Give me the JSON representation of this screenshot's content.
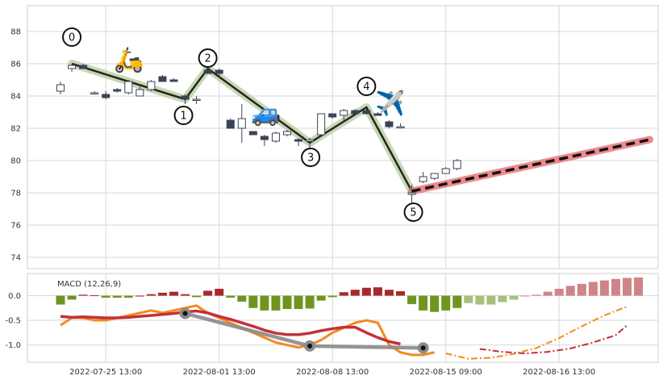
{
  "chart_data": [
    {
      "type": "candlestick",
      "ylim": [
        73.3,
        89.6
      ],
      "yticks": [
        74,
        76,
        78,
        80,
        82,
        84,
        86,
        88
      ],
      "grid": true,
      "candles": [
        {
          "x": 0,
          "o": 84.3,
          "h": 84.9,
          "l": 84.1,
          "c": 84.7
        },
        {
          "x": 1,
          "o": 85.7,
          "h": 86.0,
          "l": 85.5,
          "c": 85.9
        },
        {
          "x": 2,
          "o": 85.9,
          "h": 86.0,
          "l": 85.7,
          "c": 85.7
        },
        {
          "x": 3,
          "o": 84.2,
          "h": 84.3,
          "l": 84.1,
          "c": 84.2
        },
        {
          "x": 4,
          "o": 84.1,
          "h": 84.3,
          "l": 83.8,
          "c": 83.9
        },
        {
          "x": 5,
          "o": 84.4,
          "h": 84.5,
          "l": 84.2,
          "c": 84.3
        },
        {
          "x": 6,
          "o": 84.2,
          "h": 85.0,
          "l": 84.1,
          "c": 84.9
        },
        {
          "x": 7,
          "o": 84.0,
          "h": 84.6,
          "l": 84.0,
          "c": 84.4
        },
        {
          "x": 8,
          "o": 84.4,
          "h": 85.0,
          "l": 84.3,
          "c": 84.9
        },
        {
          "x": 9,
          "o": 85.2,
          "h": 85.3,
          "l": 84.9,
          "c": 84.9
        },
        {
          "x": 10,
          "o": 85.0,
          "h": 85.1,
          "l": 84.9,
          "c": 84.9
        },
        {
          "x": 11,
          "o": 84.0,
          "h": 84.1,
          "l": 83.5,
          "c": 83.8
        },
        {
          "x": 12,
          "o": 83.8,
          "h": 84.0,
          "l": 83.5,
          "c": 83.8
        },
        {
          "x": 13,
          "o": 85.6,
          "h": 85.8,
          "l": 85.4,
          "c": 85.4
        },
        {
          "x": 14,
          "o": 85.6,
          "h": 85.7,
          "l": 85.2,
          "c": 85.4
        },
        {
          "x": 15,
          "o": 82.5,
          "h": 82.6,
          "l": 82.0,
          "c": 82.0
        },
        {
          "x": 16,
          "o": 82.0,
          "h": 83.5,
          "l": 81.1,
          "c": 82.6
        },
        {
          "x": 17,
          "o": 81.8,
          "h": 81.8,
          "l": 81.6,
          "c": 81.6
        },
        {
          "x": 18,
          "o": 81.5,
          "h": 81.6,
          "l": 80.9,
          "c": 81.3
        },
        {
          "x": 19,
          "o": 81.2,
          "h": 81.8,
          "l": 81.1,
          "c": 81.7
        },
        {
          "x": 20,
          "o": 81.6,
          "h": 81.9,
          "l": 81.5,
          "c": 81.8
        },
        {
          "x": 21,
          "o": 81.3,
          "h": 81.4,
          "l": 80.9,
          "c": 81.2
        },
        {
          "x": 22,
          "o": 81.2,
          "h": 81.4,
          "l": 80.8,
          "c": 81.3
        },
        {
          "x": 23,
          "o": 81.6,
          "h": 82.9,
          "l": 81.5,
          "c": 82.9
        },
        {
          "x": 24,
          "o": 82.9,
          "h": 82.9,
          "l": 82.6,
          "c": 82.7
        },
        {
          "x": 25,
          "o": 82.8,
          "h": 83.2,
          "l": 82.4,
          "c": 83.1
        },
        {
          "x": 26,
          "o": 83.1,
          "h": 83.2,
          "l": 82.9,
          "c": 82.9
        },
        {
          "x": 27,
          "o": 83.1,
          "h": 83.2,
          "l": 83.0,
          "c": 82.9
        },
        {
          "x": 28,
          "o": 82.9,
          "h": 83.0,
          "l": 82.8,
          "c": 82.8
        },
        {
          "x": 29,
          "o": 82.4,
          "h": 82.5,
          "l": 82.0,
          "c": 82.1
        },
        {
          "x": 30,
          "o": 82.1,
          "h": 82.3,
          "l": 82.0,
          "c": 82.1
        },
        {
          "x": 31,
          "o": 77.9,
          "h": 78.5,
          "l": 77.3,
          "c": 78.0
        },
        {
          "x": 32,
          "o": 78.7,
          "h": 79.3,
          "l": 78.6,
          "c": 79.0
        },
        {
          "x": 33,
          "o": 78.9,
          "h": 79.2,
          "l": 78.8,
          "c": 79.2
        },
        {
          "x": 34,
          "o": 79.2,
          "h": 79.6,
          "l": 79.2,
          "c": 79.5
        },
        {
          "x": 35,
          "o": 79.5,
          "h": 80.1,
          "l": 79.4,
          "c": 80.0
        }
      ],
      "waves": [
        {
          "label": "0",
          "x": 1,
          "y": 86.0
        },
        {
          "label": "1",
          "x": 11,
          "y": 83.8
        },
        {
          "label": "2",
          "x": 13,
          "y": 85.7
        },
        {
          "label": "3",
          "x": 22,
          "y": 81.1
        },
        {
          "label": "4",
          "x": 27,
          "y": 83.3
        },
        {
          "label": "5",
          "x": 31,
          "y": 78.1
        }
      ],
      "projection": [
        {
          "x": 31,
          "y": 78.1
        },
        {
          "x": 52,
          "y": 81.3
        }
      ],
      "emojis": [
        "🛵",
        "🚙",
        "✈️"
      ]
    },
    {
      "type": "macd",
      "title": "MACD (12,26,9)",
      "ylim": [
        -1.35,
        0.45
      ],
      "yticks": [
        0.0,
        -0.5,
        -1.0
      ],
      "xticks": [
        {
          "x": 4,
          "label": "2022-07-25 13:00"
        },
        {
          "x": 14,
          "label": "2022-08-01 13:00"
        },
        {
          "x": 24,
          "label": "2022-08-08 13:00"
        },
        {
          "x": 34,
          "label": "2022-08-15 09:00"
        },
        {
          "x": 44,
          "label": "2022-08-16 13:00"
        }
      ],
      "histogram": [
        -0.18,
        -0.08,
        0.02,
        0.01,
        -0.04,
        -0.04,
        -0.04,
        0.0,
        0.03,
        0.06,
        0.08,
        0.03,
        -0.03,
        0.1,
        0.14,
        -0.04,
        -0.12,
        -0.25,
        -0.3,
        -0.3,
        -0.27,
        -0.27,
        -0.26,
        -0.1,
        -0.03,
        0.07,
        0.12,
        0.16,
        0.17,
        0.12,
        0.09,
        -0.17,
        -0.3,
        -0.33,
        -0.3,
        -0.25,
        -0.15,
        -0.18,
        -0.18,
        -0.13,
        -0.08,
        0.0,
        0.02,
        0.08,
        0.14,
        0.2,
        0.24,
        0.28,
        0.31,
        0.34,
        0.36,
        0.37
      ],
      "macd": [
        -0.6,
        -0.45,
        -0.45,
        -0.5,
        -0.5,
        -0.45,
        -0.4,
        -0.35,
        -0.3,
        -0.35,
        -0.3,
        -0.25,
        -0.2,
        -0.35,
        -0.45,
        -0.55,
        -0.65,
        -0.75,
        -0.85,
        -0.95,
        -1.0,
        -1.05,
        -1.0,
        -0.9,
        -0.75,
        -0.65,
        -0.55,
        -0.5,
        -0.55,
        -1.0,
        -1.15,
        -1.2,
        -1.2,
        -1.15
      ],
      "signal": [
        -0.42,
        -0.44,
        -0.43,
        -0.44,
        -0.45,
        -0.45,
        -0.44,
        -0.42,
        -0.4,
        -0.38,
        -0.36,
        -0.33,
        -0.31,
        -0.35,
        -0.42,
        -0.48,
        -0.55,
        -0.62,
        -0.7,
        -0.76,
        -0.79,
        -0.79,
        -0.76,
        -0.71,
        -0.67,
        -0.64,
        -0.64,
        -0.75,
        -0.85,
        -0.93,
        -0.98
      ],
      "macd_projection": [
        {
          "x": 34,
          "y": -1.17
        },
        {
          "x": 36,
          "y": -1.28
        },
        {
          "x": 38,
          "y": -1.26
        },
        {
          "x": 40,
          "y": -1.18
        },
        {
          "x": 42,
          "y": -1.06
        },
        {
          "x": 44,
          "y": -0.86
        },
        {
          "x": 46,
          "y": -0.62
        },
        {
          "x": 48,
          "y": -0.4
        },
        {
          "x": 50,
          "y": -0.22
        }
      ],
      "signal_projection": [
        {
          "x": 37,
          "y": -1.08
        },
        {
          "x": 39,
          "y": -1.14
        },
        {
          "x": 41,
          "y": -1.17
        },
        {
          "x": 43,
          "y": -1.14
        },
        {
          "x": 45,
          "y": -1.07
        },
        {
          "x": 47,
          "y": -0.95
        },
        {
          "x": 49,
          "y": -0.8
        },
        {
          "x": 50,
          "y": -0.6
        }
      ],
      "markers": [
        {
          "x": 11,
          "y": -0.36
        },
        {
          "x": 22,
          "y": -1.02
        },
        {
          "x": 32,
          "y": -1.06
        }
      ]
    }
  ]
}
